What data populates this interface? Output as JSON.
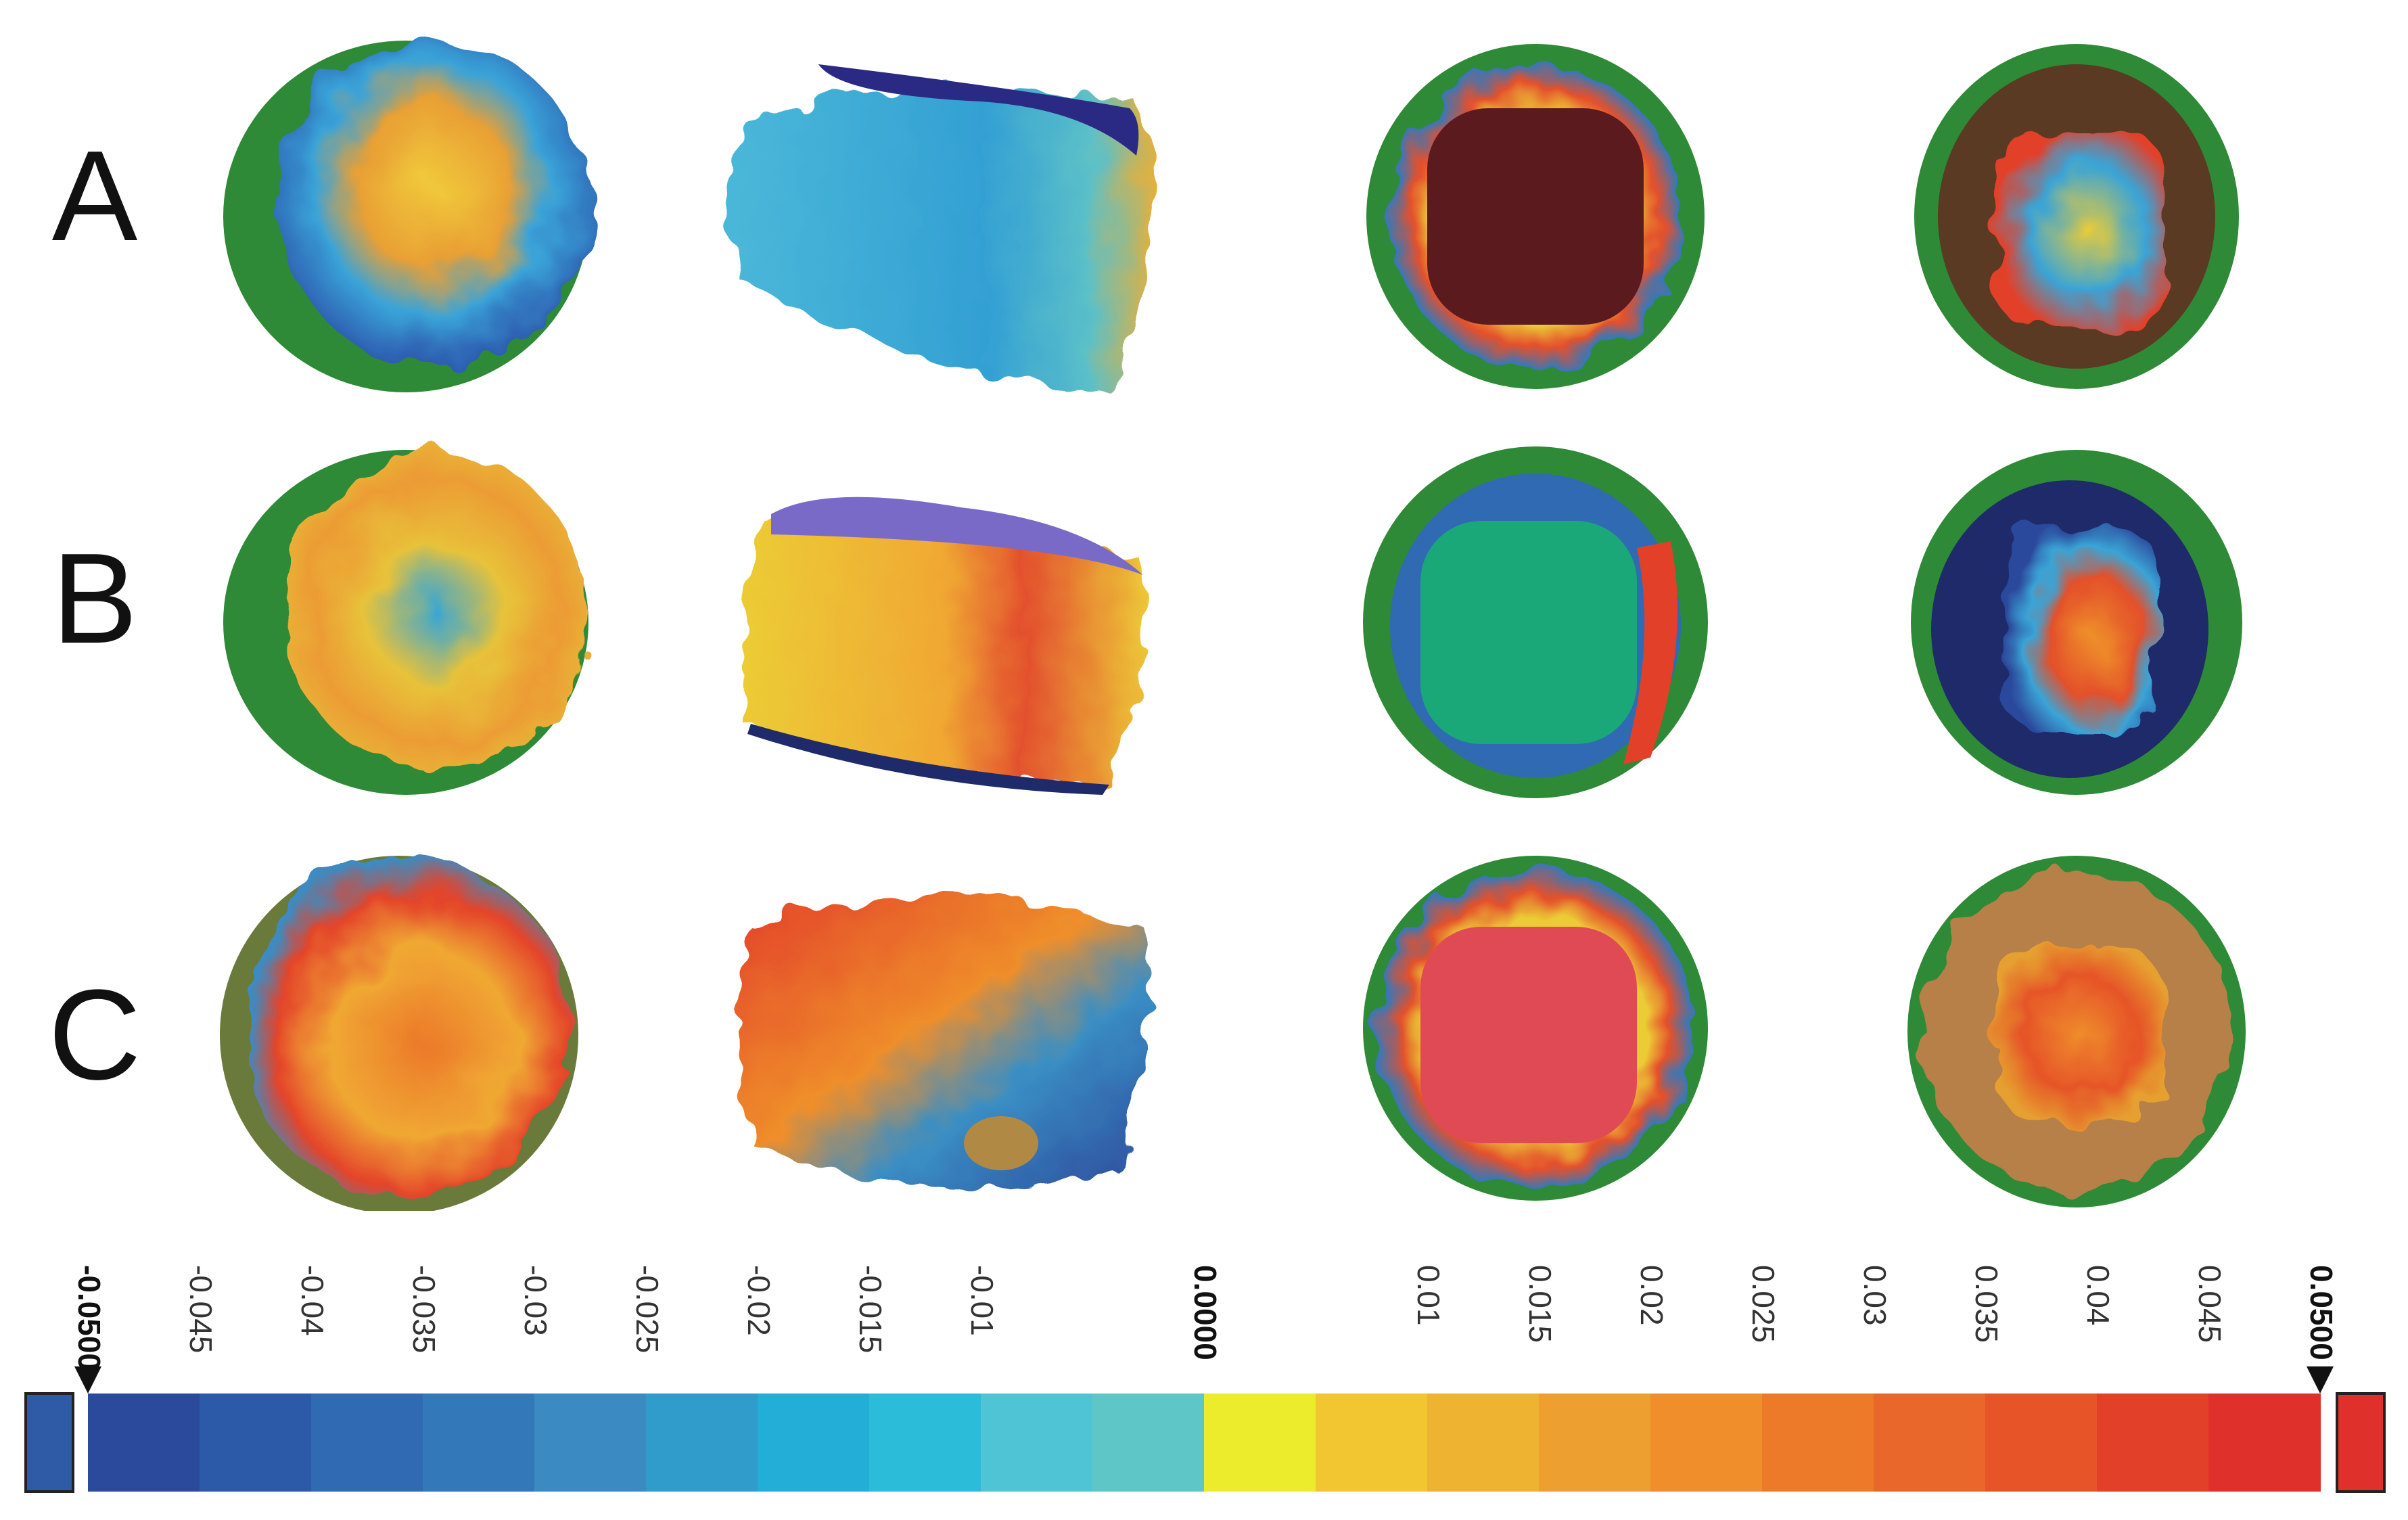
{
  "rows": [
    {
      "label": "A"
    },
    {
      "label": "B"
    },
    {
      "label": "C"
    }
  ],
  "colorbar": {
    "min_label": "-0.0500",
    "max_label": "0.0500",
    "zero_label": "0.0000",
    "tick_labels": [
      "-0.045",
      "-0.04",
      "-0.035",
      "-0.03",
      "-0.025",
      "-0.02",
      "-0.015",
      "-0.01",
      "0.01",
      "0.015",
      "0.02",
      "0.025",
      "0.03",
      "0.035",
      "0.04",
      "0.045"
    ],
    "segment_colors": [
      "#2c4a9c",
      "#2d5aa8",
      "#2f6ab3",
      "#3379ba",
      "#3b8ac2",
      "#2f9ccb",
      "#22aed6",
      "#2abcd9",
      "#4ec4d4",
      "#5fc6c8",
      "#ecec2c",
      "#f2c630",
      "#eeb331",
      "#eda02f",
      "#ef8e2b",
      "#ec7a29",
      "#e9672a",
      "#e65428",
      "#e3402a",
      "#e0302b"
    ],
    "under_color": "#2f5aa6",
    "over_color": "#e0302b"
  },
  "colors": {
    "outside_tolerance": "#2e8a36",
    "dark_red_interior": "#5a1a1e",
    "green_interior": "#1ba879",
    "red_interior": "#e04a55"
  }
}
